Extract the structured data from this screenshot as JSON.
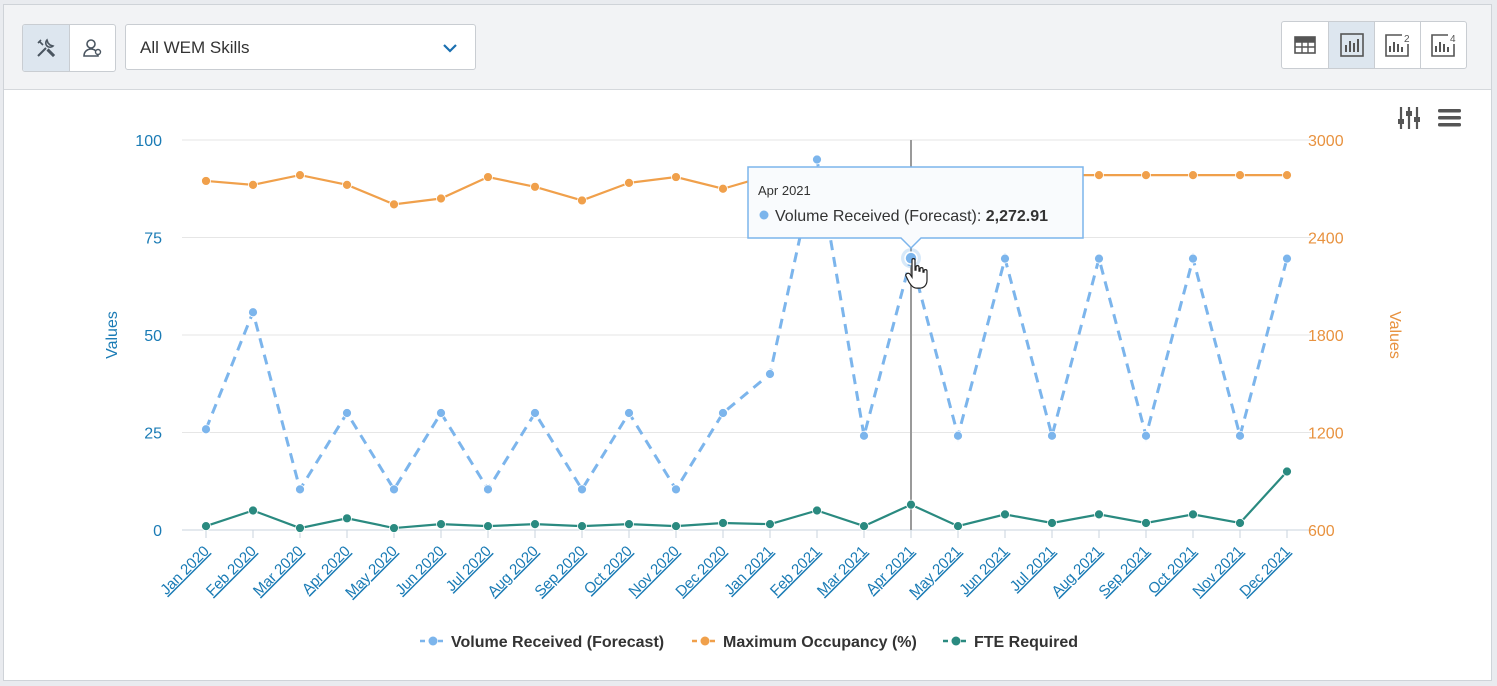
{
  "toolbar": {
    "tool_buttons": [
      "tools-icon",
      "agents-icon"
    ],
    "skill_select": {
      "value": "All WEM Skills"
    },
    "view_buttons": [
      "table-view-icon",
      "single-chart-icon",
      "two-chart-icon",
      "four-chart-icon"
    ],
    "active_view": 1
  },
  "chart_icons": [
    "settings-sliders-icon",
    "menu-icon"
  ],
  "chart_data": {
    "type": "line",
    "categories": [
      "Jan 2020",
      "Feb 2020",
      "Mar 2020",
      "Apr 2020",
      "May 2020",
      "Jun 2020",
      "Jul 2020",
      "Aug 2020",
      "Sep 2020",
      "Oct 2020",
      "Nov 2020",
      "Dec 2020",
      "Jan 2021",
      "Feb 2021",
      "Mar 2021",
      "Apr 2021",
      "May 2021",
      "Jun 2021",
      "Jul 2021",
      "Aug 2021",
      "Sep 2021",
      "Oct 2021",
      "Nov 2021",
      "Dec 2021"
    ],
    "left_axis": {
      "label": "Values",
      "ticks": [
        0,
        25,
        50,
        75,
        100
      ],
      "range": [
        0,
        100
      ]
    },
    "right_axis": {
      "label": "Values",
      "ticks": [
        600,
        1200,
        1800,
        2400,
        3000
      ],
      "range": [
        600,
        3000
      ]
    },
    "series": [
      {
        "name": "Volume Received (Forecast)",
        "axis": "right",
        "style": "dashed",
        "color": "#7cb5ec",
        "values": [
          1220,
          1940,
          850,
          1320,
          850,
          1320,
          850,
          1320,
          850,
          1320,
          850,
          1320,
          1560,
          2880,
          1180,
          2272.91,
          1180,
          2270,
          1180,
          2270,
          1180,
          2270,
          1180,
          2270
        ]
      },
      {
        "name": "Maximum Occupancy (%)",
        "axis": "left",
        "style": "solid",
        "color": "#f0a04b",
        "values": [
          89.5,
          88.5,
          91,
          88.5,
          83.5,
          85,
          90.5,
          88,
          84.5,
          89,
          90.5,
          87.5,
          91,
          91,
          91,
          91,
          91,
          91,
          91,
          91,
          91,
          91,
          91,
          91
        ]
      },
      {
        "name": "FTE Required",
        "axis": "left",
        "style": "solid",
        "color": "#2a8a80",
        "values": [
          1,
          5,
          0.5,
          3,
          0.5,
          1.5,
          1,
          1.5,
          1,
          1.5,
          1,
          1.8,
          1.5,
          5,
          1,
          6.5,
          1,
          4,
          1.8,
          4,
          1.8,
          4,
          1.8,
          15
        ]
      }
    ],
    "tooltip": {
      "category": "Apr 2021",
      "series": "Volume Received (Forecast)",
      "value_text": "2,272.91",
      "label": "Volume Received (Forecast):"
    },
    "highlight_index": 15,
    "grid": true,
    "legend_position": "bottom-center"
  }
}
